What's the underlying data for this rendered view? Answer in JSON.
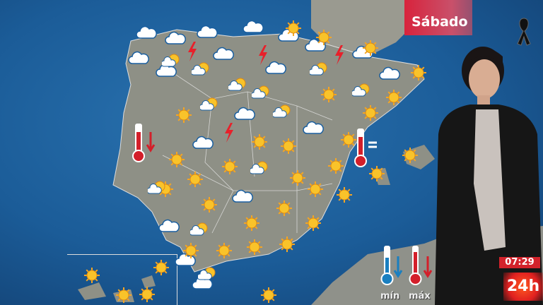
{
  "header": {
    "day_label": "Sábado",
    "mourning_ribbon": "black-ribbon-icon"
  },
  "legend": {
    "min_label": "mín",
    "max_label": "máx"
  },
  "broadcast": {
    "time": "07:29",
    "channel_logo": "24h"
  },
  "colors": {
    "sea": "#1d5f9a",
    "land": "#8e9086",
    "day_banner": "#d8233c",
    "thermo_max": "#d31f2a",
    "thermo_min": "#1a7fc0",
    "channel": "#e02020"
  },
  "icon_types": [
    "sun-icon",
    "cloud-icon",
    "sun-cloud-icon",
    "storm-icon",
    "thermometer-icon"
  ],
  "thermometer_annotations": {
    "west": "down-arrow",
    "east": "="
  }
}
